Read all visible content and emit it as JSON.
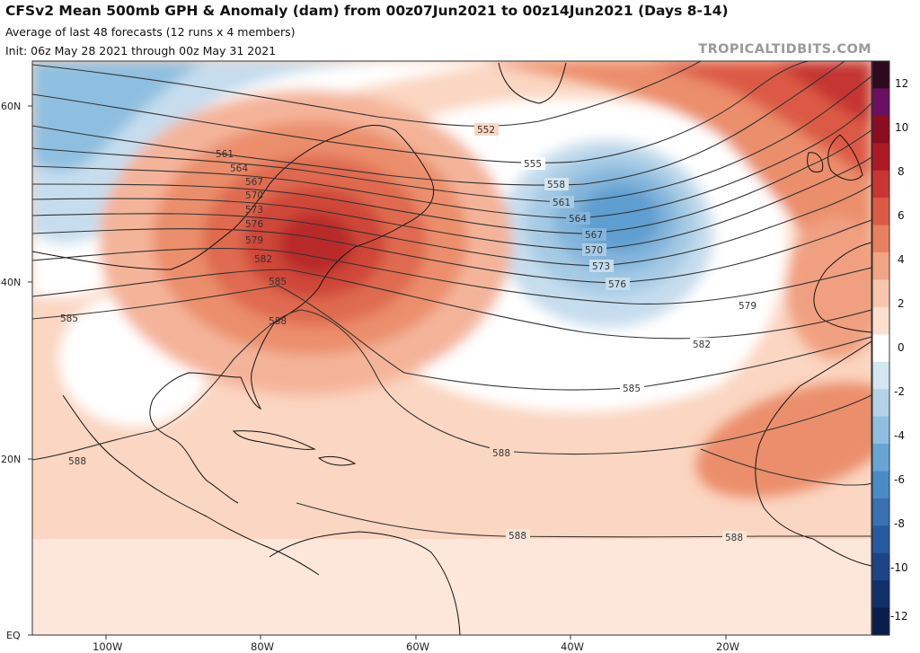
{
  "header": {
    "title": "CFSv2 Mean 500mb GPH & Anomaly (dam) from 00z07Jun2021 to 00z14Jun2021 (Days 8-14)",
    "subtitle1": "Average of last 48 forecasts (12 runs x 4 members)",
    "subtitle2": "Init: 06z May 28 2021 through 00z May 31 2021",
    "brand": "TROPICALTIDBITS.COM"
  },
  "lat_labels": [
    "60N",
    "40N",
    "20N",
    "EQ"
  ],
  "lon_labels": [
    "100W",
    "80W",
    "60W",
    "40W",
    "20W"
  ],
  "colorbar": {
    "ticks": [
      "12",
      "10",
      "8",
      "6",
      "4",
      "2",
      "0",
      "-2",
      "-4",
      "-6",
      "-8",
      "-10",
      "-12"
    ],
    "colors": [
      "#2e0a1e",
      "#6a1060",
      "#8c0c20",
      "#ad1a24",
      "#c93632",
      "#dc5a44",
      "#e98060",
      "#f2a584",
      "#f8c6ad",
      "#fbdfcf",
      "#ffffff",
      "#d4e6f1",
      "#b5d3e8",
      "#8fbfe0",
      "#67a6d4",
      "#4a8cc6",
      "#3672b4",
      "#265ba2",
      "#1b4587",
      "#10306a",
      "#0a1e4c"
    ]
  },
  "contour_labels": [
    "552",
    "555",
    "558",
    "561",
    "564",
    "567",
    "570",
    "573",
    "576",
    "579",
    "582",
    "585",
    "588",
    "561",
    "564",
    "567",
    "570",
    "573",
    "576",
    "579",
    "582",
    "585",
    "588",
    "585",
    "588",
    "588",
    "588",
    "588"
  ],
  "colors": {
    "positive": "#e07060",
    "negative": "#4a90c8",
    "contour": "#333333"
  }
}
